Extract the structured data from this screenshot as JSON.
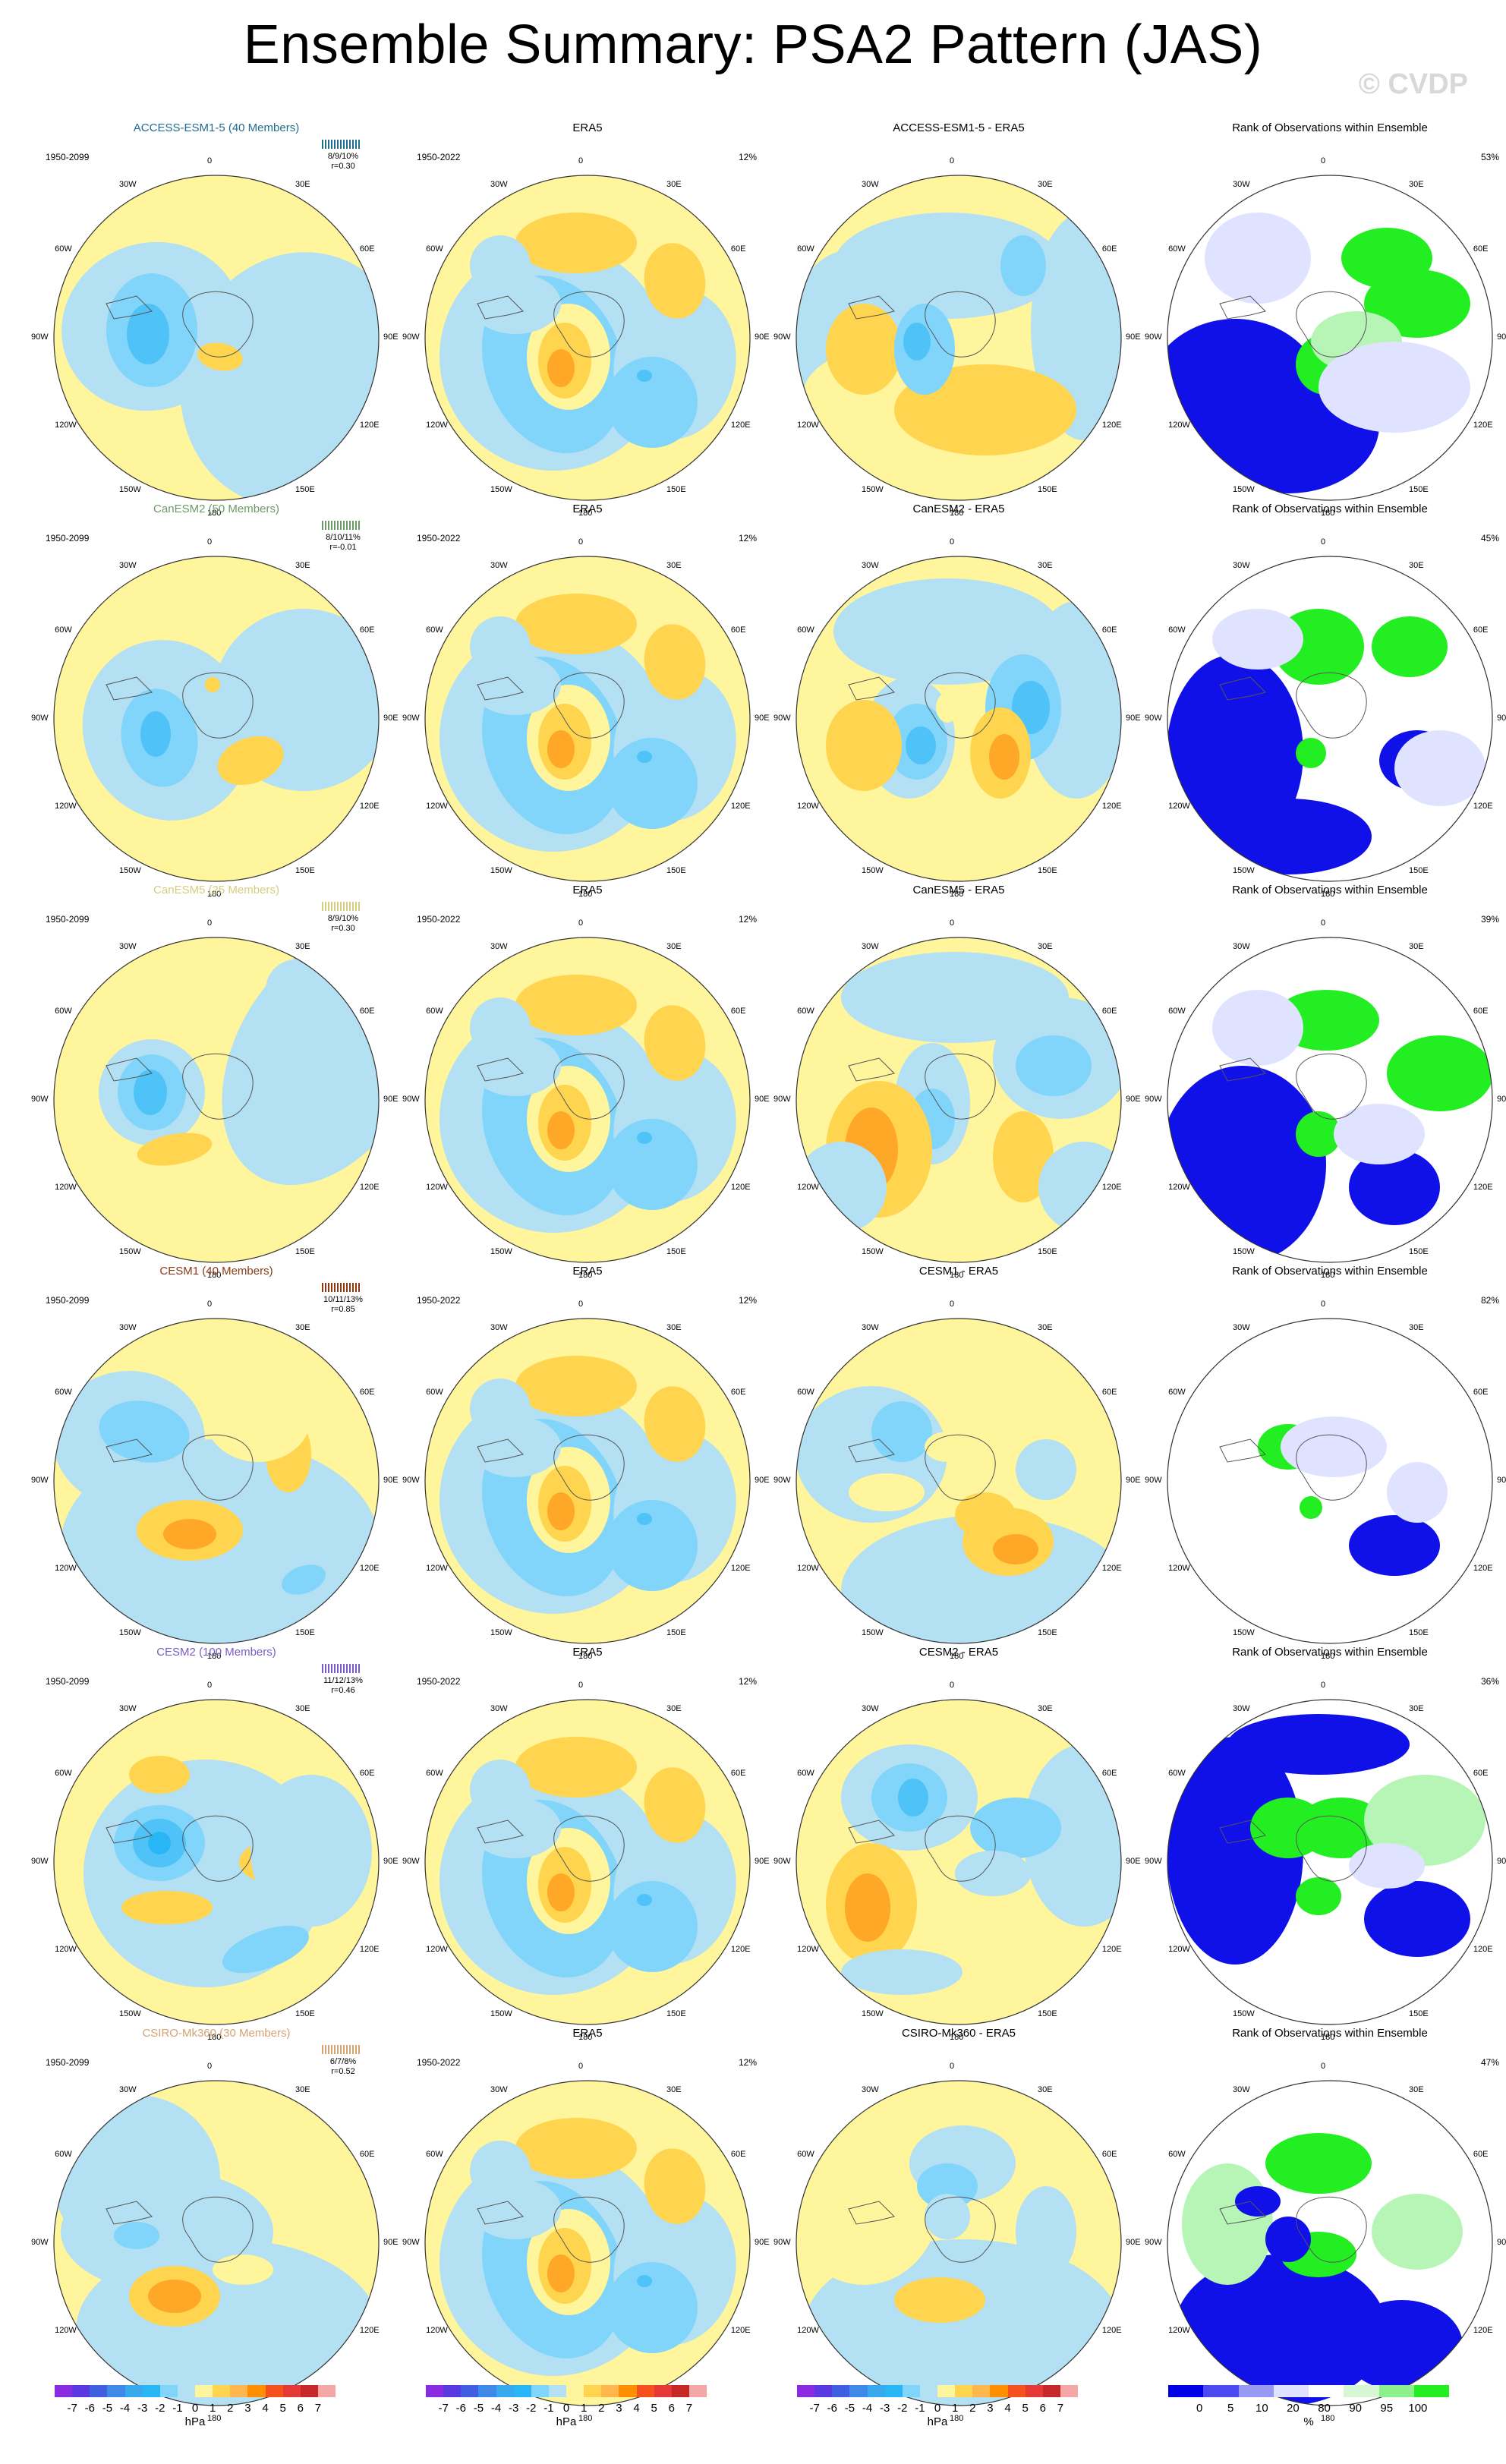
{
  "page_title": "Ensemble Summary: PSA2 Pattern (JAS)",
  "copyright": "© CVDP",
  "colors": {
    "pos1": "#fff59d",
    "pos2": "#ffd54f",
    "pos3": "#ffa726",
    "neg1": "#b3e0f2",
    "neg2": "#81d4fa",
    "neg3": "#4fc3f7",
    "neg4": "#29b6f6",
    "rank_low": "#1010e8",
    "rank_mid": "#dfe3ff",
    "rank_high": "#22ee22",
    "rank_light_green": "#b7f5b7"
  },
  "longitude_labels": [
    "0",
    "30E",
    "60E",
    "90E",
    "120E",
    "150E",
    "180",
    "150W",
    "120W",
    "90W",
    "60W",
    "30W"
  ],
  "rows": [
    {
      "model_title": "ACCESS-ESM1-5 (40 Members)",
      "model_color": "#1f6c8e",
      "model_period": "1950-2099",
      "stat1": "8/9/10%",
      "stat2": "r=0.30",
      "obs_title": "ERA5",
      "obs_period": "1950-2022",
      "obs_pct": "12%",
      "diff_title": "ACCESS-ESM1-5 - ERA5",
      "rank_title": "Rank of Observations within Ensemble",
      "rank_pct": "53%"
    },
    {
      "model_title": "CanESM2 (50 Members)",
      "model_color": "#6b9a66",
      "model_period": "1950-2099",
      "stat1": "8/10/11%",
      "stat2": "r=-0.01",
      "obs_title": "ERA5",
      "obs_period": "1950-2022",
      "obs_pct": "12%",
      "diff_title": "CanESM2 - ERA5",
      "rank_title": "Rank of Observations within Ensemble",
      "rank_pct": "45%"
    },
    {
      "model_title": "CanESM5 (25 Members)",
      "model_color": "#d8cc7e",
      "model_period": "1950-2099",
      "stat1": "8/9/10%",
      "stat2": "r=0.30",
      "obs_title": "ERA5",
      "obs_period": "1950-2022",
      "obs_pct": "12%",
      "diff_title": "CanESM5 - ERA5",
      "rank_title": "Rank of Observations within Ensemble",
      "rank_pct": "39%"
    },
    {
      "model_title": "CESM1 (40 Members)",
      "model_color": "#8b3a14",
      "model_period": "1950-2099",
      "stat1": "10/11/13%",
      "stat2": "r=0.85",
      "obs_title": "ERA5",
      "obs_period": "1950-2022",
      "obs_pct": "12%",
      "diff_title": "CESM1 - ERA5",
      "rank_title": "Rank of Observations within Ensemble",
      "rank_pct": "82%"
    },
    {
      "model_title": "CESM2 (100 Members)",
      "model_color": "#7b5cc7",
      "model_period": "1950-2099",
      "stat1": "11/12/13%",
      "stat2": "r=0.46",
      "obs_title": "ERA5",
      "obs_period": "1950-2022",
      "obs_pct": "12%",
      "diff_title": "CESM2 - ERA5",
      "rank_title": "Rank of Observations within Ensemble",
      "rank_pct": "36%"
    },
    {
      "model_title": "CSIRO-Mk360 (30 Members)",
      "model_color": "#d4a373",
      "model_period": "1950-2099",
      "stat1": "6/7/8%",
      "stat2": "r=0.52",
      "obs_title": "ERA5",
      "obs_period": "1950-2022",
      "obs_pct": "12%",
      "diff_title": "CSIRO-Mk360 - ERA5",
      "rank_title": "Rank of Observations within Ensemble",
      "rank_pct": "47%"
    }
  ],
  "colorbar_hpa": {
    "ticks": [
      "-7",
      "-6",
      "-5",
      "-4",
      "-3",
      "-2",
      "-1",
      "0",
      "1",
      "2",
      "3",
      "4",
      "5",
      "6",
      "7"
    ],
    "colors": [
      "#8a2be2",
      "#5a3ae0",
      "#3f5fe0",
      "#3f8ae8",
      "#39a9ee",
      "#29b6f6",
      "#81d4fa",
      "#b3e0f2",
      "#fff59d",
      "#ffd54f",
      "#ffb74d",
      "#ff8f00",
      "#f4511e",
      "#e53935",
      "#c62828",
      "#f4a7a7"
    ],
    "unit": "hPa"
  },
  "colorbar_rank": {
    "ticks": [
      "0",
      "5",
      "10",
      "20",
      "80",
      "90",
      "95",
      "100"
    ],
    "colors": [
      "#0000e6",
      "#4a4af0",
      "#9898f5",
      "#dfe3ff",
      "#ffffff",
      "#d6f7d6",
      "#8cf08c",
      "#22ee22"
    ],
    "unit": "%"
  }
}
